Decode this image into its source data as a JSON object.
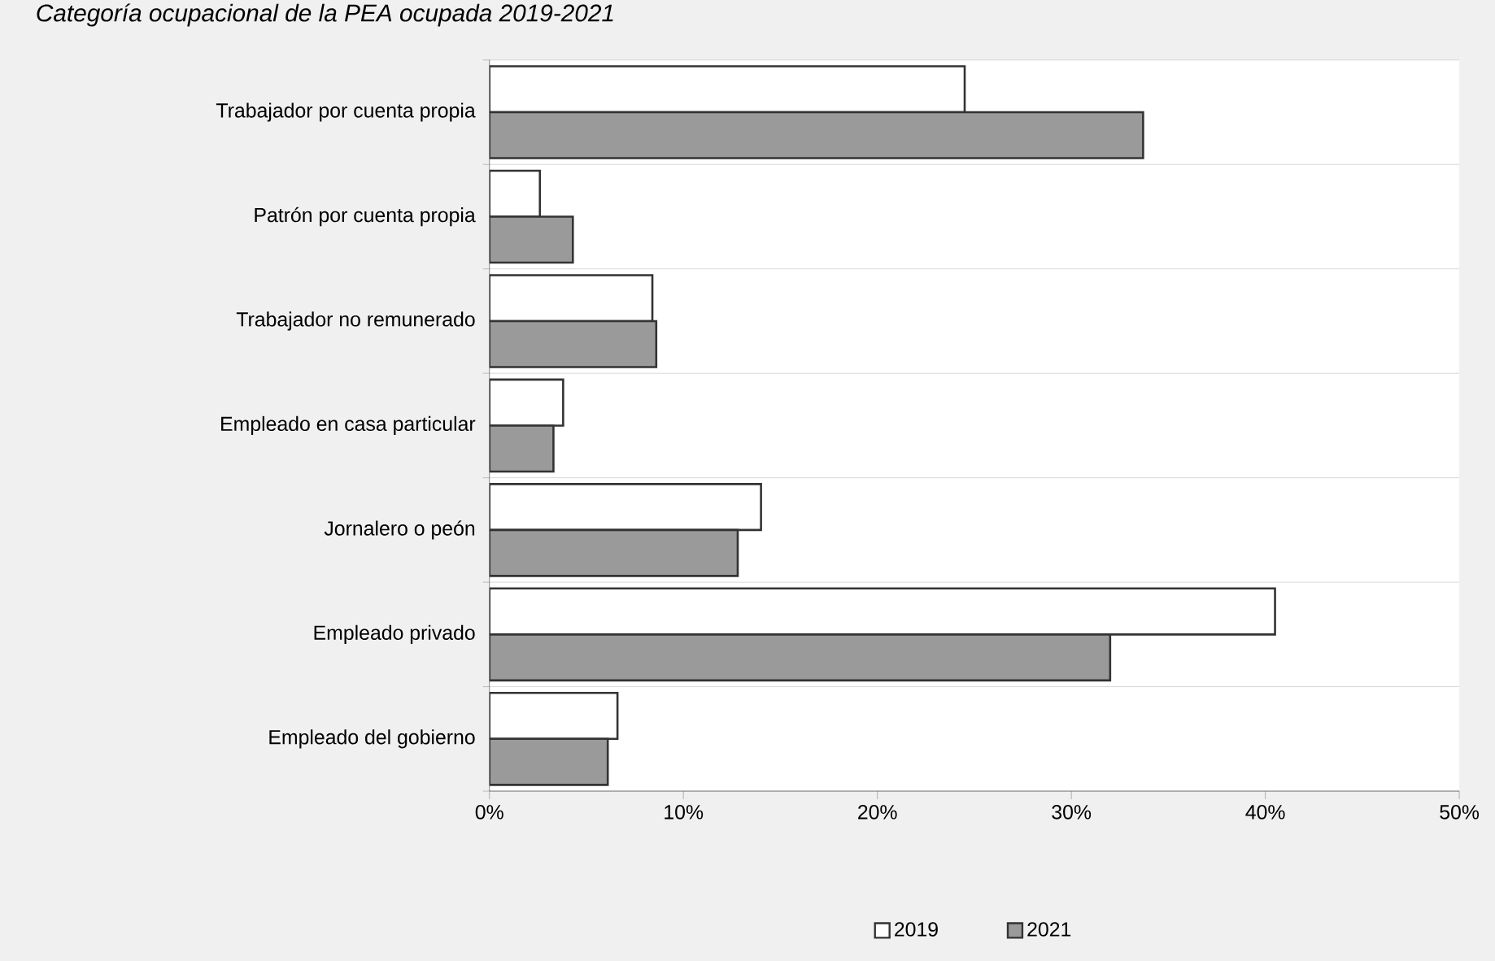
{
  "chart_data": {
    "type": "bar",
    "orientation": "horizontal",
    "title": "Categoría ocupacional de la PEA ocupada 2019-2021",
    "categories": [
      "Trabajador por cuenta propia",
      "Patrón por cuenta propia",
      "Trabajador no remunerado",
      "Empleado en casa particular",
      "Jornalero o peón",
      "Empleado privado",
      "Empleado del gobierno"
    ],
    "series": [
      {
        "name": "2019",
        "color": "#ffffff",
        "values": [
          24.5,
          2.6,
          8.4,
          3.8,
          14.0,
          40.5,
          6.6
        ]
      },
      {
        "name": "2021",
        "color": "#9a9a9a",
        "values": [
          33.7,
          4.3,
          8.6,
          3.3,
          12.8,
          32.0,
          6.1
        ]
      }
    ],
    "xlim": [
      0,
      50
    ],
    "xticks": [
      {
        "value": 0,
        "label": "0%"
      },
      {
        "value": 10,
        "label": "10%"
      },
      {
        "value": 20,
        "label": "20%"
      },
      {
        "value": 30,
        "label": "30%"
      },
      {
        "value": 40,
        "label": "40%"
      },
      {
        "value": 50,
        "label": "50%"
      }
    ],
    "grid": "y",
    "legend": "bottom"
  }
}
